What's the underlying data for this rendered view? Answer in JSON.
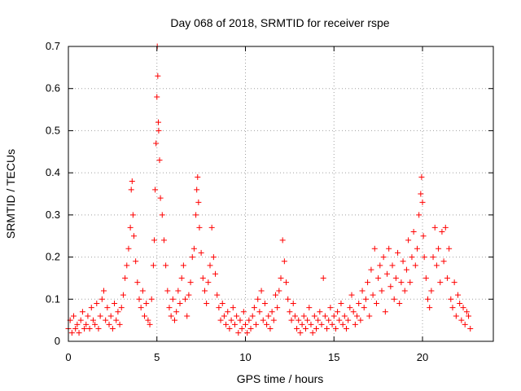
{
  "chart_data": {
    "type": "scatter",
    "title": "Day 068 of 2018, SRMTID for receiver rspe",
    "xlabel": "GPS time / hours",
    "ylabel": "SRMTID / TECUs",
    "xlim": [
      0,
      24
    ],
    "ylim": [
      0,
      0.7
    ],
    "x_ticks": [
      "0",
      "5",
      "10",
      "15",
      "20"
    ],
    "y_ticks": [
      "0",
      "0.1",
      "0.2",
      "0.3",
      "0.4",
      "0.5",
      "0.6",
      "0.7"
    ],
    "grid": true,
    "marker": "+",
    "color": "#ff0000",
    "series": [
      {
        "name": "SRMTID",
        "x": [
          0.0,
          0.1,
          0.2,
          0.3,
          0.4,
          0.5,
          0.6,
          0.7,
          0.8,
          0.9,
          1.0,
          1.1,
          1.2,
          1.3,
          1.4,
          1.5,
          1.6,
          1.7,
          1.8,
          1.9,
          2.0,
          2.1,
          2.2,
          2.3,
          2.4,
          2.5,
          2.6,
          2.7,
          2.8,
          2.9,
          3.0,
          3.1,
          3.2,
          3.3,
          3.4,
          3.5,
          3.55,
          3.6,
          3.65,
          3.7,
          3.8,
          3.9,
          4.0,
          4.1,
          4.2,
          4.3,
          4.4,
          4.5,
          4.6,
          4.7,
          4.8,
          4.85,
          4.9,
          4.95,
          5.0,
          5.02,
          5.05,
          5.08,
          5.1,
          5.15,
          5.2,
          5.3,
          5.4,
          5.5,
          5.6,
          5.7,
          5.8,
          5.9,
          6.0,
          6.1,
          6.2,
          6.3,
          6.4,
          6.5,
          6.6,
          6.7,
          6.8,
          6.9,
          7.0,
          7.1,
          7.2,
          7.25,
          7.3,
          7.35,
          7.4,
          7.5,
          7.6,
          7.7,
          7.8,
          7.9,
          8.0,
          8.1,
          8.2,
          8.3,
          8.4,
          8.5,
          8.6,
          8.7,
          8.8,
          8.9,
          9.0,
          9.1,
          9.2,
          9.3,
          9.4,
          9.5,
          9.6,
          9.7,
          9.8,
          9.9,
          10.0,
          10.1,
          10.2,
          10.3,
          10.4,
          10.5,
          10.6,
          10.7,
          10.8,
          10.9,
          11.0,
          11.1,
          11.2,
          11.3,
          11.4,
          11.5,
          11.6,
          11.7,
          11.8,
          11.9,
          12.0,
          12.1,
          12.2,
          12.3,
          12.4,
          12.5,
          12.6,
          12.7,
          12.8,
          12.9,
          13.0,
          13.1,
          13.2,
          13.3,
          13.4,
          13.5,
          13.6,
          13.7,
          13.8,
          13.9,
          14.0,
          14.1,
          14.2,
          14.3,
          14.4,
          14.5,
          14.6,
          14.7,
          14.8,
          14.9,
          15.0,
          15.1,
          15.2,
          15.3,
          15.4,
          15.5,
          15.6,
          15.7,
          15.8,
          15.9,
          16.0,
          16.1,
          16.2,
          16.3,
          16.4,
          16.5,
          16.6,
          16.7,
          16.8,
          16.9,
          17.0,
          17.1,
          17.2,
          17.3,
          17.4,
          17.5,
          17.6,
          17.7,
          17.8,
          17.9,
          18.0,
          18.1,
          18.2,
          18.3,
          18.4,
          18.5,
          18.6,
          18.7,
          18.8,
          18.9,
          19.0,
          19.1,
          19.2,
          19.3,
          19.4,
          19.5,
          19.6,
          19.7,
          19.8,
          19.9,
          19.95,
          20.0,
          20.05,
          20.1,
          20.2,
          20.3,
          20.4,
          20.5,
          20.6,
          20.7,
          20.8,
          20.9,
          21.0,
          21.1,
          21.2,
          21.3,
          21.4,
          21.5,
          21.6,
          21.7,
          21.8,
          21.9,
          22.0,
          22.1,
          22.2,
          22.3,
          22.4,
          22.5,
          22.6,
          22.7
        ],
        "y": [
          0.03,
          0.05,
          0.02,
          0.06,
          0.03,
          0.04,
          0.02,
          0.05,
          0.07,
          0.03,
          0.04,
          0.06,
          0.03,
          0.08,
          0.05,
          0.04,
          0.09,
          0.03,
          0.06,
          0.1,
          0.12,
          0.05,
          0.08,
          0.04,
          0.06,
          0.03,
          0.09,
          0.05,
          0.07,
          0.04,
          0.08,
          0.11,
          0.15,
          0.18,
          0.22,
          0.27,
          0.36,
          0.38,
          0.3,
          0.25,
          0.19,
          0.14,
          0.1,
          0.08,
          0.12,
          0.06,
          0.09,
          0.05,
          0.04,
          0.1,
          0.18,
          0.24,
          0.36,
          0.47,
          0.58,
          0.7,
          0.63,
          0.52,
          0.5,
          0.43,
          0.34,
          0.3,
          0.24,
          0.18,
          0.12,
          0.08,
          0.06,
          0.1,
          0.05,
          0.07,
          0.12,
          0.09,
          0.15,
          0.18,
          0.1,
          0.06,
          0.11,
          0.14,
          0.2,
          0.22,
          0.3,
          0.36,
          0.39,
          0.33,
          0.27,
          0.21,
          0.15,
          0.12,
          0.09,
          0.14,
          0.18,
          0.27,
          0.2,
          0.16,
          0.11,
          0.08,
          0.05,
          0.09,
          0.06,
          0.04,
          0.07,
          0.03,
          0.05,
          0.08,
          0.04,
          0.06,
          0.02,
          0.05,
          0.03,
          0.07,
          0.04,
          0.02,
          0.05,
          0.03,
          0.06,
          0.08,
          0.04,
          0.1,
          0.07,
          0.12,
          0.05,
          0.09,
          0.04,
          0.06,
          0.03,
          0.07,
          0.05,
          0.11,
          0.08,
          0.12,
          0.15,
          0.24,
          0.19,
          0.14,
          0.1,
          0.07,
          0.05,
          0.09,
          0.06,
          0.03,
          0.05,
          0.02,
          0.04,
          0.06,
          0.03,
          0.05,
          0.08,
          0.04,
          0.02,
          0.06,
          0.03,
          0.05,
          0.07,
          0.04,
          0.15,
          0.06,
          0.03,
          0.05,
          0.08,
          0.04,
          0.06,
          0.03,
          0.07,
          0.05,
          0.09,
          0.04,
          0.06,
          0.03,
          0.05,
          0.08,
          0.11,
          0.07,
          0.04,
          0.06,
          0.09,
          0.05,
          0.12,
          0.08,
          0.1,
          0.14,
          0.06,
          0.17,
          0.11,
          0.22,
          0.09,
          0.15,
          0.18,
          0.12,
          0.2,
          0.07,
          0.16,
          0.22,
          0.13,
          0.18,
          0.1,
          0.15,
          0.21,
          0.09,
          0.14,
          0.19,
          0.12,
          0.17,
          0.24,
          0.14,
          0.2,
          0.26,
          0.18,
          0.22,
          0.3,
          0.35,
          0.39,
          0.33,
          0.25,
          0.2,
          0.15,
          0.1,
          0.08,
          0.12,
          0.2,
          0.27,
          0.18,
          0.22,
          0.14,
          0.26,
          0.19,
          0.27,
          0.15,
          0.22,
          0.1,
          0.08,
          0.14,
          0.06,
          0.11,
          0.09,
          0.05,
          0.08,
          0.04,
          0.07,
          0.06,
          0.03
        ]
      }
    ]
  }
}
